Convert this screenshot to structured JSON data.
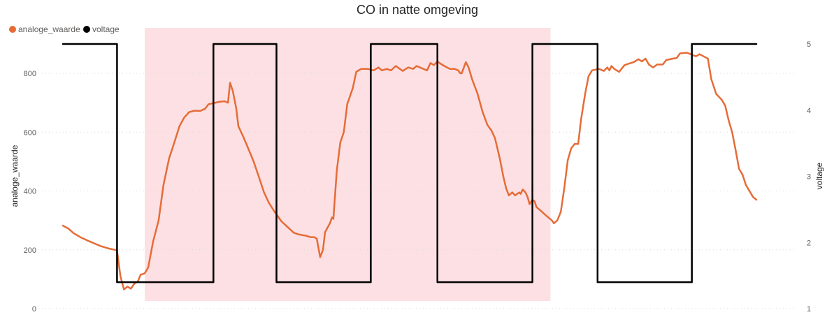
{
  "chart_data": {
    "type": "line",
    "title": "CO in natte omgeving",
    "legend": {
      "placement": "top-left",
      "items": [
        {
          "label": "analoge_waarde",
          "color": "#e66c37"
        },
        {
          "label": "voltage",
          "color": "#000000"
        }
      ]
    },
    "y_left": {
      "label": "analoge_waarde",
      "ticks": [
        "0",
        "200",
        "400",
        "600",
        "800"
      ],
      "range": [
        0,
        950
      ]
    },
    "y_right": {
      "label": "voltage",
      "ticks": [
        "1",
        "2",
        "3",
        "4",
        "5"
      ],
      "range": [
        1,
        5.05
      ]
    },
    "x_range": [
      0,
      100
    ],
    "highlight_band": {
      "x_start": 11.8,
      "x_end": 70.3,
      "color": "#fde0e3"
    },
    "grid": true,
    "series": [
      {
        "name": "analoge_waarde",
        "axis": "left",
        "color": "#e66c37",
        "points": [
          [
            0,
            282
          ],
          [
            0.8,
            272
          ],
          [
            1.5,
            257
          ],
          [
            2.5,
            243
          ],
          [
            3.5,
            232
          ],
          [
            4.5,
            222
          ],
          [
            5.5,
            212
          ],
          [
            6.5,
            205
          ],
          [
            7.5,
            200
          ],
          [
            7.8,
            197
          ],
          [
            8.3,
            110
          ],
          [
            8.8,
            65
          ],
          [
            9.3,
            75
          ],
          [
            9.8,
            68
          ],
          [
            10.3,
            85
          ],
          [
            10.8,
            92
          ],
          [
            11.2,
            115
          ],
          [
            11.8,
            120
          ],
          [
            12.3,
            140
          ],
          [
            13,
            228
          ],
          [
            13.8,
            300
          ],
          [
            14.5,
            420
          ],
          [
            15.3,
            510
          ],
          [
            16,
            560
          ],
          [
            16.8,
            620
          ],
          [
            17.5,
            650
          ],
          [
            18.2,
            668
          ],
          [
            19,
            673
          ],
          [
            19.8,
            672
          ],
          [
            20.5,
            680
          ],
          [
            21,
            695
          ],
          [
            22,
            700
          ],
          [
            22.5,
            703
          ],
          [
            23.3,
            705
          ],
          [
            23.8,
            700
          ],
          [
            24.1,
            768
          ],
          [
            24.5,
            740
          ],
          [
            25,
            680
          ],
          [
            25.3,
            620
          ],
          [
            26,
            585
          ],
          [
            26.8,
            540
          ],
          [
            27.5,
            500
          ],
          [
            28.3,
            445
          ],
          [
            29,
            395
          ],
          [
            29.7,
            360
          ],
          [
            30.5,
            330
          ],
          [
            31.5,
            297
          ],
          [
            32.5,
            275
          ],
          [
            33.3,
            258
          ],
          [
            34,
            252
          ],
          [
            35,
            248
          ],
          [
            35.7,
            243
          ],
          [
            36.2,
            243
          ],
          [
            36.6,
            238
          ],
          [
            37.1,
            175
          ],
          [
            37.5,
            200
          ],
          [
            37.8,
            260
          ],
          [
            38.5,
            290
          ],
          [
            38.8,
            310
          ],
          [
            39,
            305
          ],
          [
            39.5,
            470
          ],
          [
            40,
            565
          ],
          [
            40.5,
            600
          ],
          [
            41,
            695
          ],
          [
            41.8,
            750
          ],
          [
            42.3,
            805
          ],
          [
            43,
            815
          ],
          [
            44,
            815
          ],
          [
            44.8,
            810
          ],
          [
            45.5,
            820
          ],
          [
            46,
            810
          ],
          [
            46.7,
            815
          ],
          [
            47.3,
            810
          ],
          [
            48,
            825
          ],
          [
            49,
            808
          ],
          [
            49.8,
            820
          ],
          [
            50.5,
            815
          ],
          [
            51,
            825
          ],
          [
            52,
            815
          ],
          [
            52.5,
            810
          ],
          [
            53,
            835
          ],
          [
            53.5,
            828
          ],
          [
            54,
            840
          ],
          [
            54.5,
            832
          ],
          [
            55,
            825
          ],
          [
            55.8,
            815
          ],
          [
            56.5,
            815
          ],
          [
            57,
            810
          ],
          [
            57.3,
            800
          ],
          [
            57.5,
            800
          ],
          [
            58.1,
            838
          ],
          [
            58.5,
            820
          ],
          [
            59,
            780
          ],
          [
            59.8,
            730
          ],
          [
            60.5,
            670
          ],
          [
            61.2,
            625
          ],
          [
            61.8,
            605
          ],
          [
            62.3,
            580
          ],
          [
            62.6,
            550
          ],
          [
            63,
            510
          ],
          [
            63.5,
            450
          ],
          [
            63.9,
            410
          ],
          [
            64.3,
            385
          ],
          [
            64.8,
            395
          ],
          [
            65.2,
            385
          ],
          [
            65.8,
            395
          ],
          [
            66,
            390
          ],
          [
            66.3,
            405
          ],
          [
            66.7,
            395
          ],
          [
            67,
            380
          ],
          [
            67.3,
            355
          ],
          [
            67.7,
            370
          ],
          [
            68,
            365
          ],
          [
            68.3,
            345
          ],
          [
            68.8,
            335
          ],
          [
            69.5,
            320
          ],
          [
            70,
            310
          ],
          [
            70.5,
            300
          ],
          [
            70.8,
            290
          ],
          [
            71.3,
            300
          ],
          [
            71.8,
            330
          ],
          [
            72.3,
            410
          ],
          [
            72.8,
            505
          ],
          [
            73.3,
            545
          ],
          [
            73.8,
            560
          ],
          [
            74.3,
            560
          ],
          [
            74.7,
            640
          ],
          [
            75.3,
            730
          ],
          [
            75.8,
            790
          ],
          [
            76.3,
            810
          ],
          [
            77.3,
            815
          ],
          [
            78,
            808
          ],
          [
            78.5,
            820
          ],
          [
            78.8,
            810
          ],
          [
            79.1,
            825
          ],
          [
            79.5,
            815
          ],
          [
            80.2,
            805
          ],
          [
            81,
            828
          ],
          [
            81.5,
            832
          ],
          [
            82.3,
            838
          ],
          [
            83,
            848
          ],
          [
            83.5,
            840
          ],
          [
            84,
            850
          ],
          [
            84.5,
            830
          ],
          [
            85.1,
            820
          ],
          [
            85.7,
            830
          ],
          [
            86.5,
            830
          ],
          [
            87,
            845
          ],
          [
            88,
            850
          ],
          [
            88.5,
            852
          ],
          [
            89,
            868
          ],
          [
            90,
            870
          ],
          [
            90.8,
            862
          ],
          [
            91.3,
            858
          ],
          [
            91.8,
            865
          ],
          [
            92.2,
            860
          ],
          [
            92.6,
            855
          ],
          [
            93,
            850
          ],
          [
            93.5,
            780
          ],
          [
            94.2,
            730
          ],
          [
            94.8,
            715
          ],
          [
            95,
            710
          ]
        ],
        "points_note_b": [
          [
            95,
            710
          ],
          [
            95.5,
            690
          ],
          [
            96,
            640
          ],
          [
            96.5,
            600
          ],
          [
            97,
            540
          ],
          [
            97.5,
            475
          ],
          [
            98,
            455
          ],
          [
            98.5,
            420
          ],
          [
            99,
            400
          ],
          [
            99.5,
            380
          ],
          [
            100,
            370
          ]
        ]
      },
      {
        "name": "voltage",
        "axis": "right",
        "color": "#000000",
        "points": [
          [
            0,
            5
          ],
          [
            7.8,
            5
          ],
          [
            7.8,
            1.4
          ],
          [
            21.7,
            1.4
          ],
          [
            21.7,
            5
          ],
          [
            30.8,
            5
          ],
          [
            30.8,
            1.4
          ],
          [
            44.4,
            1.4
          ],
          [
            44.4,
            5
          ],
          [
            54,
            5
          ],
          [
            54,
            1.4
          ],
          [
            67.7,
            1.4
          ],
          [
            67.7,
            5
          ],
          [
            77.1,
            5
          ],
          [
            77.1,
            1.4
          ],
          [
            90.7,
            1.4
          ],
          [
            90.7,
            5
          ],
          [
            100,
            5
          ]
        ]
      }
    ]
  }
}
